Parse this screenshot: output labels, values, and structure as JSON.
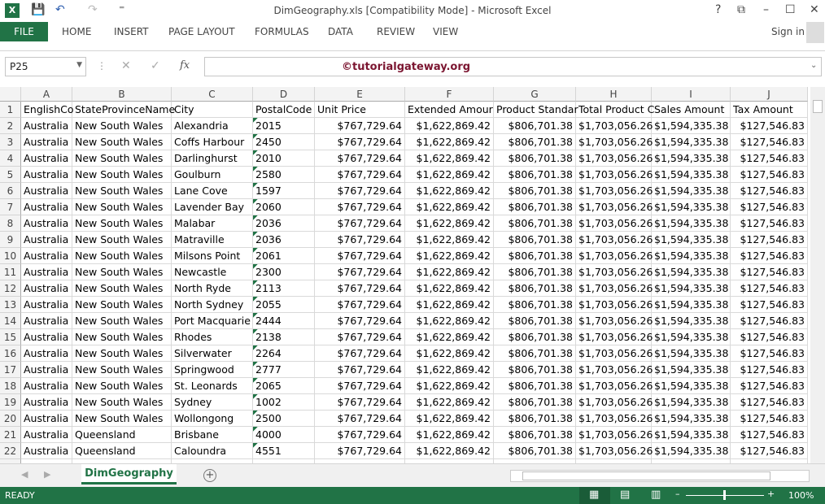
{
  "window": {
    "title": "DimGeography.xls  [Compatibility Mode] - Microsoft Excel",
    "help": "?",
    "restore_ribbon": "⧉",
    "minimize": "–",
    "maximize": "☐",
    "close": "✕"
  },
  "quick_access": {
    "save": "💾",
    "undo": "↶",
    "redo": "↷",
    "customize": "⁼"
  },
  "ribbon": {
    "file": "FILE",
    "tabs": [
      "HOME",
      "INSERT",
      "PAGE LAYOUT",
      "FORMULAS",
      "DATA",
      "REVIEW",
      "VIEW"
    ],
    "sign_in": "Sign in"
  },
  "formula_bar": {
    "name_box": "P25",
    "cancel": "✕",
    "enter": "✓",
    "fx": "fx",
    "value": "©tutorialgateway.org"
  },
  "columns": [
    "A",
    "B",
    "C",
    "D",
    "E",
    "F",
    "G",
    "H",
    "I",
    "J"
  ],
  "header_row": [
    "EnglishCo",
    "StateProvinceName",
    "City",
    "PostalCode",
    "Unit Price",
    "Extended Amour",
    "Product Standar",
    "Total Product C",
    "Sales Amount",
    "Tax Amount"
  ],
  "rows": [
    [
      "Australia",
      "New South Wales",
      "Alexandria",
      "2015",
      "$767,729.64",
      "$1,622,869.42",
      "$806,701.38",
      "$1,703,056.26",
      "$1,594,335.38",
      "$127,546.83"
    ],
    [
      "Australia",
      "New South Wales",
      "Coffs Harbour",
      "2450",
      "$767,729.64",
      "$1,622,869.42",
      "$806,701.38",
      "$1,703,056.26",
      "$1,594,335.38",
      "$127,546.83"
    ],
    [
      "Australia",
      "New South Wales",
      "Darlinghurst",
      "2010",
      "$767,729.64",
      "$1,622,869.42",
      "$806,701.38",
      "$1,703,056.26",
      "$1,594,335.38",
      "$127,546.83"
    ],
    [
      "Australia",
      "New South Wales",
      "Goulburn",
      "2580",
      "$767,729.64",
      "$1,622,869.42",
      "$806,701.38",
      "$1,703,056.26",
      "$1,594,335.38",
      "$127,546.83"
    ],
    [
      "Australia",
      "New South Wales",
      "Lane Cove",
      "1597",
      "$767,729.64",
      "$1,622,869.42",
      "$806,701.38",
      "$1,703,056.26",
      "$1,594,335.38",
      "$127,546.83"
    ],
    [
      "Australia",
      "New South Wales",
      "Lavender Bay",
      "2060",
      "$767,729.64",
      "$1,622,869.42",
      "$806,701.38",
      "$1,703,056.26",
      "$1,594,335.38",
      "$127,546.83"
    ],
    [
      "Australia",
      "New South Wales",
      "Malabar",
      "2036",
      "$767,729.64",
      "$1,622,869.42",
      "$806,701.38",
      "$1,703,056.26",
      "$1,594,335.38",
      "$127,546.83"
    ],
    [
      "Australia",
      "New South Wales",
      "Matraville",
      "2036",
      "$767,729.64",
      "$1,622,869.42",
      "$806,701.38",
      "$1,703,056.26",
      "$1,594,335.38",
      "$127,546.83"
    ],
    [
      "Australia",
      "New South Wales",
      "Milsons Point",
      "2061",
      "$767,729.64",
      "$1,622,869.42",
      "$806,701.38",
      "$1,703,056.26",
      "$1,594,335.38",
      "$127,546.83"
    ],
    [
      "Australia",
      "New South Wales",
      "Newcastle",
      "2300",
      "$767,729.64",
      "$1,622,869.42",
      "$806,701.38",
      "$1,703,056.26",
      "$1,594,335.38",
      "$127,546.83"
    ],
    [
      "Australia",
      "New South Wales",
      "North Ryde",
      "2113",
      "$767,729.64",
      "$1,622,869.42",
      "$806,701.38",
      "$1,703,056.26",
      "$1,594,335.38",
      "$127,546.83"
    ],
    [
      "Australia",
      "New South Wales",
      "North Sydney",
      "2055",
      "$767,729.64",
      "$1,622,869.42",
      "$806,701.38",
      "$1,703,056.26",
      "$1,594,335.38",
      "$127,546.83"
    ],
    [
      "Australia",
      "New South Wales",
      "Port Macquarie",
      "2444",
      "$767,729.64",
      "$1,622,869.42",
      "$806,701.38",
      "$1,703,056.26",
      "$1,594,335.38",
      "$127,546.83"
    ],
    [
      "Australia",
      "New South Wales",
      "Rhodes",
      "2138",
      "$767,729.64",
      "$1,622,869.42",
      "$806,701.38",
      "$1,703,056.26",
      "$1,594,335.38",
      "$127,546.83"
    ],
    [
      "Australia",
      "New South Wales",
      "Silverwater",
      "2264",
      "$767,729.64",
      "$1,622,869.42",
      "$806,701.38",
      "$1,703,056.26",
      "$1,594,335.38",
      "$127,546.83"
    ],
    [
      "Australia",
      "New South Wales",
      "Springwood",
      "2777",
      "$767,729.64",
      "$1,622,869.42",
      "$806,701.38",
      "$1,703,056.26",
      "$1,594,335.38",
      "$127,546.83"
    ],
    [
      "Australia",
      "New South Wales",
      "St. Leonards",
      "2065",
      "$767,729.64",
      "$1,622,869.42",
      "$806,701.38",
      "$1,703,056.26",
      "$1,594,335.38",
      "$127,546.83"
    ],
    [
      "Australia",
      "New South Wales",
      "Sydney",
      "1002",
      "$767,729.64",
      "$1,622,869.42",
      "$806,701.38",
      "$1,703,056.26",
      "$1,594,335.38",
      "$127,546.83"
    ],
    [
      "Australia",
      "New South Wales",
      "Wollongong",
      "2500",
      "$767,729.64",
      "$1,622,869.42",
      "$806,701.38",
      "$1,703,056.26",
      "$1,594,335.38",
      "$127,546.83"
    ],
    [
      "Australia",
      "Queensland",
      "Brisbane",
      "4000",
      "$767,729.64",
      "$1,622,869.42",
      "$806,701.38",
      "$1,703,056.26",
      "$1,594,335.38",
      "$127,546.83"
    ],
    [
      "Australia",
      "Queensland",
      "Caloundra",
      "4551",
      "$767,729.64",
      "$1,622,869.42",
      "$806,701.38",
      "$1,703,056.26",
      "$1,594,335.38",
      "$127,546.83"
    ]
  ],
  "sheets": {
    "active": "DimGeography",
    "add": "+"
  },
  "status": {
    "ready": "READY",
    "zoom": "100%"
  },
  "colors": {
    "accent": "#217346",
    "watermark": "#7b1530"
  }
}
